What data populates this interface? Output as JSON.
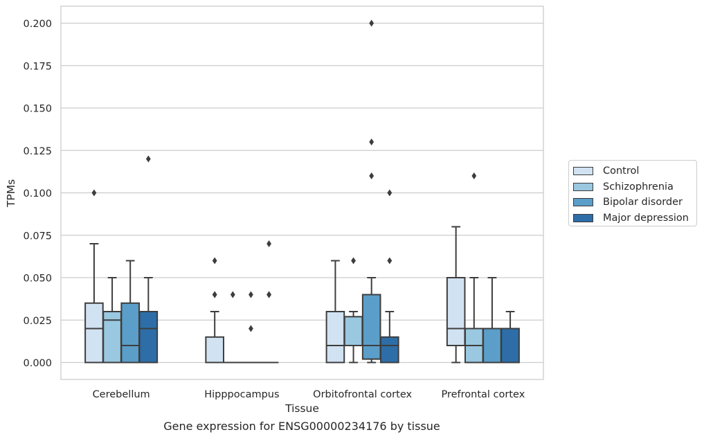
{
  "chart_data": {
    "type": "box",
    "title": "",
    "xlabel": "Tissue",
    "ylabel": "TPMs",
    "caption": "Gene expression for ENSG00000234176 by tissue",
    "ylim": [
      -0.01,
      0.21
    ],
    "yticks": [
      "0.000",
      "0.025",
      "0.050",
      "0.075",
      "0.100",
      "0.125",
      "0.150",
      "0.175",
      "0.200"
    ],
    "ytick_values": [
      0,
      0.025,
      0.05,
      0.075,
      0.1,
      0.125,
      0.15,
      0.175,
      0.2
    ],
    "grid": true,
    "legend_position": "right",
    "categories": [
      "Cerebellum",
      "Hipppocampus",
      "Orbitofrontal cortex",
      "Prefrontal cortex"
    ],
    "series": [
      {
        "name": "Control",
        "color": "#d1e2f2",
        "boxes": [
          {
            "whislo": 0,
            "q1": 0,
            "med": 0.02,
            "q3": 0.035,
            "whishi": 0.07,
            "fliers": [
              0.1
            ]
          },
          {
            "whislo": 0,
            "q1": 0,
            "med": 0,
            "q3": 0.015,
            "whishi": 0.03,
            "fliers": [
              0.04,
              0.04,
              0.06
            ]
          },
          {
            "whislo": 0,
            "q1": 0,
            "med": 0.01,
            "q3": 0.03,
            "whishi": 0.06,
            "fliers": []
          },
          {
            "whislo": 0,
            "q1": 0.01,
            "med": 0.02,
            "q3": 0.05,
            "whishi": 0.08,
            "fliers": []
          }
        ]
      },
      {
        "name": "Schizophrenia",
        "color": "#9ac8e0",
        "boxes": [
          {
            "whislo": 0,
            "q1": 0,
            "med": 0.025,
            "q3": 0.03,
            "whishi": 0.05,
            "fliers": []
          },
          {
            "whislo": 0,
            "q1": 0,
            "med": 0,
            "q3": 0,
            "whishi": 0,
            "fliers": [
              0.04
            ]
          },
          {
            "whislo": 0,
            "q1": 0.01,
            "med": 0.01,
            "q3": 0.027,
            "whishi": 0.03,
            "fliers": [
              0.06
            ]
          },
          {
            "whislo": 0,
            "q1": 0,
            "med": 0.01,
            "q3": 0.02,
            "whishi": 0.05,
            "fliers": [
              0.11
            ]
          }
        ]
      },
      {
        "name": "Bipolar disorder",
        "color": "#5b9ec9",
        "boxes": [
          {
            "whislo": 0,
            "q1": 0,
            "med": 0.01,
            "q3": 0.035,
            "whishi": 0.06,
            "fliers": []
          },
          {
            "whislo": 0,
            "q1": 0,
            "med": 0,
            "q3": 0,
            "whishi": 0,
            "fliers": [
              0.02,
              0.04
            ]
          },
          {
            "whislo": 0,
            "q1": 0.002,
            "med": 0.01,
            "q3": 0.04,
            "whishi": 0.05,
            "fliers": [
              0.11,
              0.13,
              0.2
            ]
          },
          {
            "whislo": 0,
            "q1": 0,
            "med": 0.02,
            "q3": 0.02,
            "whishi": 0.05,
            "fliers": []
          }
        ]
      },
      {
        "name": "Major depression",
        "color": "#2d6ea8",
        "boxes": [
          {
            "whislo": 0,
            "q1": 0,
            "med": 0.02,
            "q3": 0.03,
            "whishi": 0.05,
            "fliers": [
              0.12
            ]
          },
          {
            "whislo": 0,
            "q1": 0,
            "med": 0,
            "q3": 0,
            "whishi": 0,
            "fliers": [
              0.04,
              0.04,
              0.07
            ]
          },
          {
            "whislo": 0,
            "q1": 0,
            "med": 0.01,
            "q3": 0.015,
            "whishi": 0.03,
            "fliers": [
              0.06,
              0.1
            ]
          },
          {
            "whislo": 0,
            "q1": 0,
            "med": 0.02,
            "q3": 0.02,
            "whishi": 0.03,
            "fliers": []
          }
        ]
      }
    ]
  }
}
